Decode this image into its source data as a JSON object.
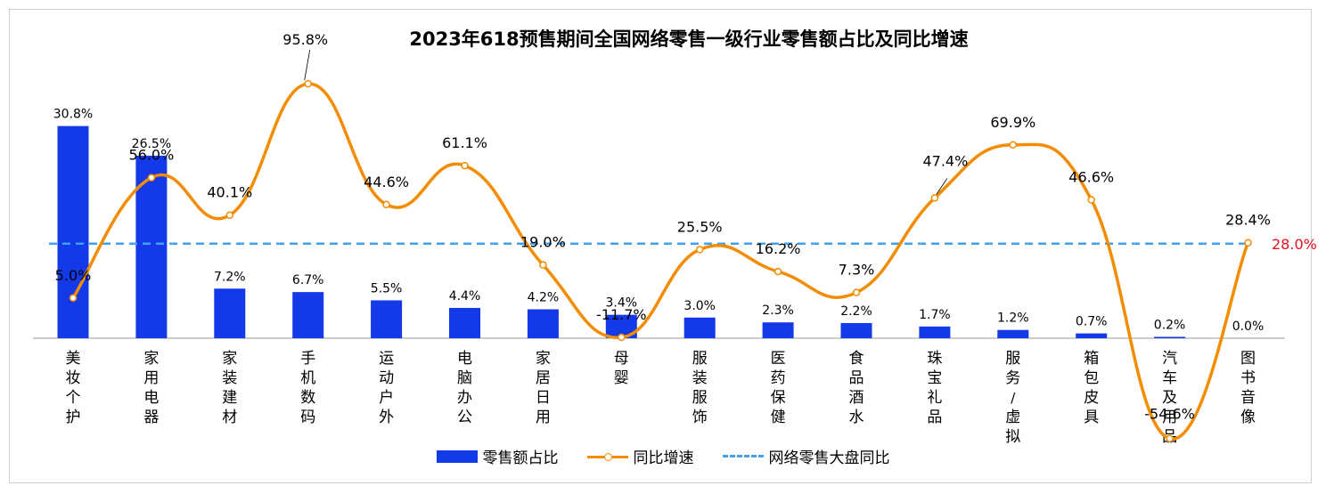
{
  "chart_data": {
    "type": "bar+line",
    "title": "2023年618预售期间全国网络零售一级行业零售额占比及同比增速",
    "categories": [
      "美妆个护",
      "家用电器",
      "家装建材",
      "手机数码",
      "运动户外",
      "电脑办公",
      "家居日用",
      "母婴",
      "服装服饰",
      "医药保健",
      "食品酒水",
      "珠宝礼品",
      "服务/虚拟",
      "箱包皮具",
      "汽车及用品",
      "图书音像"
    ],
    "series": [
      {
        "name": "零售额占比",
        "type": "bar",
        "axis": "left",
        "values": [
          30.8,
          26.5,
          7.2,
          6.7,
          5.5,
          4.4,
          4.2,
          3.4,
          3.0,
          2.3,
          2.2,
          1.7,
          1.2,
          0.7,
          0.2,
          0.0
        ],
        "labels": [
          "30.8%",
          "26.5%",
          "7.2%",
          "6.7%",
          "5.5%",
          "4.4%",
          "4.2%",
          "3.4%",
          "3.0%",
          "2.3%",
          "2.2%",
          "1.7%",
          "1.2%",
          "0.7%",
          "0.2%",
          "0.0%"
        ]
      },
      {
        "name": "同比增速",
        "type": "line",
        "axis": "right",
        "values": [
          5.0,
          56.0,
          40.1,
          95.8,
          44.6,
          61.1,
          19.0,
          -11.7,
          25.5,
          16.2,
          7.3,
          47.4,
          69.9,
          46.6,
          -54.6,
          28.4
        ],
        "labels": [
          "5.0%",
          "56.0%",
          "40.1%",
          "95.8%",
          "44.6%",
          "61.1%",
          "19.0%",
          "-11.7%",
          "25.5%",
          "16.2%",
          "7.3%",
          "47.4%",
          "69.9%",
          "46.6%",
          "-54.6%",
          "28.4%"
        ]
      },
      {
        "name": "网络零售大盘同比",
        "type": "reference",
        "axis": "right",
        "value": 28.0,
        "label": "28.0%"
      }
    ],
    "left_axis": {
      "range": [
        0,
        40
      ]
    },
    "right_axis": {
      "range": [
        -80,
        120
      ]
    },
    "legend_position": "bottom-center",
    "colors": {
      "bar": "#1339e8",
      "line": "#f28c00",
      "reference": "#3ea1f2",
      "reference_label": "#e8121f"
    }
  }
}
